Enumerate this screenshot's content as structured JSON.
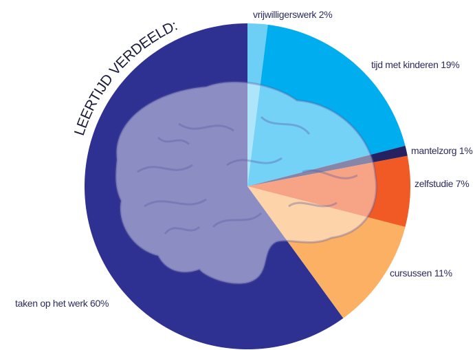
{
  "chart_data": {
    "type": "pie",
    "title": "LEERTIJD VERDEELD:",
    "categories": [
      "vrijwilligerswerk",
      "tijd met kinderen",
      "mantelzorg",
      "zelfstudie",
      "cursussen",
      "taken op het werk"
    ],
    "values": [
      2,
      19,
      1,
      7,
      11,
      60
    ],
    "value_labels": [
      "2%",
      "19%",
      "1%",
      "7%",
      "11%",
      "60%"
    ],
    "colors": [
      "#6dcff6",
      "#00aeef",
      "#262262",
      "#f15a24",
      "#fbb064",
      "#2e3192"
    ]
  }
}
